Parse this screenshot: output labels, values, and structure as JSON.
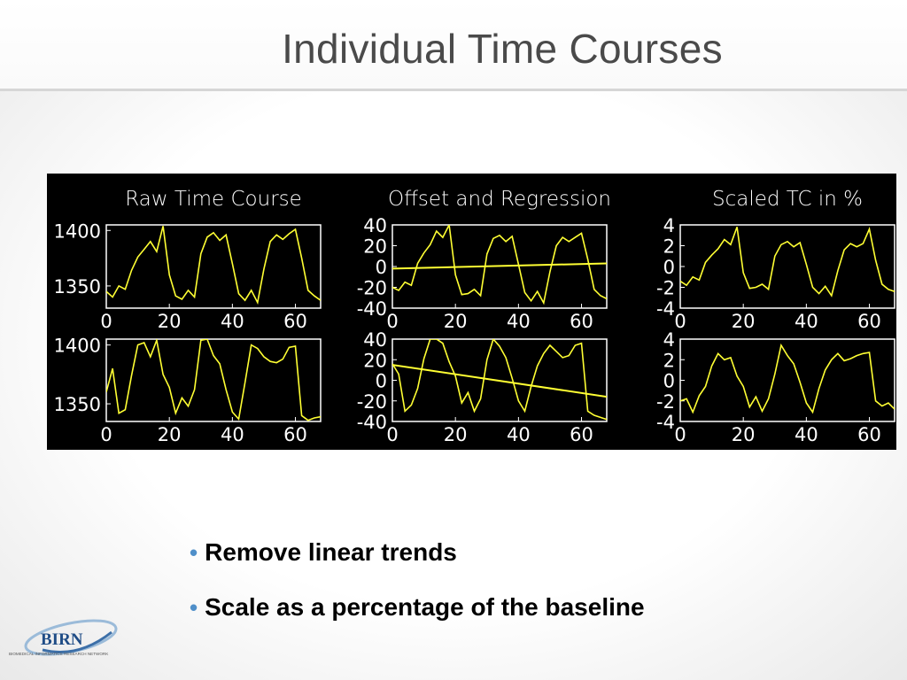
{
  "slide": {
    "title": "Individual Time Courses"
  },
  "bullets": [
    {
      "text": "Remove linear trends"
    },
    {
      "text": "Scale as a percentage of the baseline"
    }
  ],
  "logo": {
    "text": "BIRN",
    "subtext": "BIOMEDICAL INFORMATICS RESEARCH NETWORK"
  },
  "colors": {
    "trace": "#ffff33",
    "figure_background": "#000000",
    "axes": "#ffffff",
    "bullet": "#4f8fc9"
  },
  "chart_data": [
    {
      "type": "line",
      "title": "Raw Time Course",
      "x": [
        0,
        2,
        4,
        6,
        8,
        10,
        12,
        14,
        16,
        18,
        20,
        22,
        24,
        26,
        28,
        30,
        32,
        34,
        36,
        38,
        40,
        42,
        44,
        46,
        48,
        50,
        52,
        54,
        56,
        58,
        60,
        62,
        64,
        66,
        68
      ],
      "values": [
        1345,
        1340,
        1350,
        1347,
        1364,
        1376,
        1383,
        1390,
        1381,
        1404,
        1360,
        1341,
        1338,
        1346,
        1340,
        1379,
        1394,
        1398,
        1391,
        1396,
        1370,
        1343,
        1337,
        1346,
        1335,
        1365,
        1390,
        1396,
        1392,
        1397,
        1401,
        1375,
        1346,
        1341,
        1337
      ],
      "xlim": [
        0,
        68
      ],
      "ylim": [
        1330,
        1405
      ],
      "xticks": [
        "0",
        "20",
        "40",
        "60"
      ],
      "yticks": [
        "1400",
        "1350"
      ]
    },
    {
      "type": "line",
      "title": "Offset and Regression",
      "x": [
        0,
        2,
        4,
        6,
        8,
        10,
        12,
        14,
        16,
        18,
        20,
        22,
        24,
        26,
        28,
        30,
        32,
        34,
        36,
        38,
        40,
        42,
        44,
        46,
        48,
        50,
        52,
        54,
        56,
        58,
        60,
        62,
        64,
        66,
        68
      ],
      "values": [
        -20,
        -23,
        -15,
        -18,
        3,
        13,
        21,
        34,
        28,
        40,
        -8,
        -27,
        -26,
        -22,
        -28,
        12,
        27,
        30,
        24,
        29,
        2,
        -25,
        -33,
        -24,
        -35,
        -5,
        20,
        28,
        24,
        28,
        32,
        7,
        -22,
        -28,
        -31
      ],
      "trend": [
        -2,
        3
      ],
      "xlim": [
        0,
        68
      ],
      "ylim": [
        -40,
        40
      ],
      "xticks": [
        "0",
        "20",
        "40",
        "60"
      ],
      "yticks": [
        "40",
        "20",
        "0",
        "-20",
        "-40"
      ]
    },
    {
      "type": "line",
      "title": "Scaled TC in %",
      "x": [
        0,
        2,
        4,
        6,
        8,
        10,
        12,
        14,
        16,
        18,
        20,
        22,
        24,
        26,
        28,
        30,
        32,
        34,
        36,
        38,
        40,
        42,
        44,
        46,
        48,
        50,
        52,
        54,
        56,
        58,
        60,
        62,
        64,
        66,
        68
      ],
      "values": [
        -1.4,
        -1.8,
        -1.0,
        -1.3,
        0.4,
        1.1,
        1.7,
        2.6,
        2.1,
        3.8,
        -0.6,
        -2.1,
        -2.0,
        -1.7,
        -2.2,
        1.0,
        2.1,
        2.4,
        1.9,
        2.3,
        0.2,
        -2.0,
        -2.6,
        -1.9,
        -2.8,
        -0.4,
        1.6,
        2.2,
        1.9,
        2.2,
        3.6,
        0.6,
        -1.7,
        -2.2,
        -2.4
      ],
      "xlim": [
        0,
        68
      ],
      "ylim": [
        -4,
        4
      ],
      "xticks": [
        "0",
        "20",
        "40",
        "60"
      ],
      "yticks": [
        "4",
        "2",
        "0",
        "-2",
        "-4"
      ]
    },
    {
      "type": "line",
      "x": [
        0,
        2,
        4,
        6,
        8,
        10,
        12,
        14,
        16,
        18,
        20,
        22,
        24,
        26,
        28,
        30,
        32,
        34,
        36,
        38,
        40,
        42,
        44,
        46,
        48,
        50,
        52,
        54,
        56,
        58,
        60,
        62,
        64,
        66,
        68
      ],
      "values": [
        1360,
        1380,
        1342,
        1345,
        1374,
        1400,
        1402,
        1390,
        1404,
        1375,
        1364,
        1342,
        1355,
        1348,
        1362,
        1404,
        1405,
        1391,
        1384,
        1362,
        1343,
        1337,
        1368,
        1400,
        1397,
        1390,
        1386,
        1385,
        1388,
        1398,
        1399,
        1340,
        1336,
        1338,
        1339
      ],
      "xlim": [
        0,
        68
      ],
      "ylim": [
        1335,
        1405
      ],
      "xticks": [
        "0",
        "20",
        "40",
        "60"
      ],
      "yticks": [
        "1400",
        "1350"
      ]
    },
    {
      "type": "line",
      "x": [
        0,
        2,
        4,
        6,
        8,
        10,
        12,
        14,
        16,
        18,
        20,
        22,
        24,
        26,
        28,
        30,
        32,
        34,
        36,
        38,
        40,
        42,
        44,
        46,
        48,
        50,
        52,
        54,
        56,
        58,
        60,
        62,
        64,
        66,
        68
      ],
      "values": [
        16,
        6,
        -30,
        -24,
        -8,
        21,
        40,
        40,
        36,
        18,
        4,
        -22,
        -12,
        -30,
        -18,
        20,
        40,
        33,
        22,
        2,
        -20,
        -30,
        -6,
        14,
        26,
        34,
        28,
        22,
        24,
        34,
        36,
        -30,
        -34,
        -36,
        -38
      ],
      "trend": [
        15,
        -16
      ],
      "xlim": [
        0,
        68
      ],
      "ylim": [
        -40,
        40
      ],
      "xticks": [
        "0",
        "20",
        "40",
        "60"
      ],
      "yticks": [
        "40",
        "20",
        "0",
        "-20",
        "-40"
      ]
    },
    {
      "type": "line",
      "x": [
        0,
        2,
        4,
        6,
        8,
        10,
        12,
        14,
        16,
        18,
        20,
        22,
        24,
        26,
        28,
        30,
        32,
        34,
        36,
        38,
        40,
        42,
        44,
        46,
        48,
        50,
        52,
        54,
        56,
        58,
        60,
        62,
        64,
        66,
        68
      ],
      "values": [
        -2,
        -1.8,
        -3.1,
        -1.5,
        -0.6,
        1.4,
        2.6,
        2.0,
        2.2,
        0.4,
        -0.6,
        -2.6,
        -1.6,
        -3.0,
        -1.8,
        0.6,
        3.4,
        2.4,
        1.6,
        -0.2,
        -2.2,
        -3.1,
        -0.8,
        1.0,
        2.0,
        2.6,
        1.9,
        2.1,
        2.4,
        2.6,
        2.7,
        -2.0,
        -2.5,
        -2.2,
        -2.8
      ],
      "xlim": [
        0,
        68
      ],
      "ylim": [
        -4,
        4
      ],
      "xticks": [
        "0",
        "20",
        "40",
        "60"
      ],
      "yticks": [
        "4",
        "2",
        "0",
        "-2",
        "-4"
      ]
    }
  ]
}
